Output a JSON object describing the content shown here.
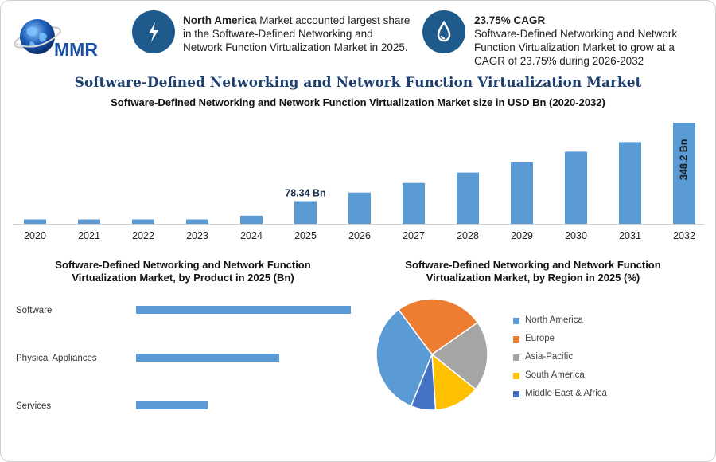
{
  "logo": {
    "text": "MMR"
  },
  "highlights": [
    {
      "icon": "lightning-icon",
      "bold": "North America",
      "text": " Market accounted largest share in the Software-Defined Networking and Network Function Virtualization Market in 2025."
    },
    {
      "icon": "growth-drop-icon",
      "bold": "23.75% CAGR",
      "text": "Software-Defined Networking and Network Function Virtualization Market to grow at a CAGR of 23.75% during 2026-2032"
    }
  ],
  "title": "Software-Defined Networking and Network Function Virtualization Market",
  "colors": {
    "bar": "#5b9bd5",
    "title": "#1f3f6e",
    "icon_bg": "#1f5a8c"
  },
  "chart_data": [
    {
      "type": "bar",
      "title": "Software-Defined Networking and Network Function Virtualization Market size in USD Bn (2020-2032)",
      "categories": [
        "2020",
        "2021",
        "2022",
        "2023",
        "2024",
        "2025",
        "2026",
        "2027",
        "2028",
        "2029",
        "2030",
        "2031",
        "2032"
      ],
      "values": [
        15,
        15,
        15,
        15,
        28,
        78.34,
        108,
        141,
        177,
        212,
        249,
        282,
        348.2
      ],
      "data_labels": [
        {
          "index": 5,
          "text": "78.34 Bn"
        },
        {
          "index": 12,
          "text": "348.2 Bn"
        }
      ],
      "ylim": [
        0,
        360
      ],
      "grid": false,
      "color": "#5b9bd5"
    },
    {
      "type": "bar",
      "orientation": "horizontal",
      "title_lines": [
        "Software-Defined Networking and Network Function",
        "Virtualization Market, by Product in 2025 (Bn)"
      ],
      "categories": [
        "Software",
        "Physical Appliances",
        "Services"
      ],
      "values": [
        45,
        30,
        15
      ],
      "xlim": [
        0,
        45
      ],
      "grid": false,
      "color": "#5b9bd5"
    },
    {
      "type": "pie",
      "title_lines": [
        "Software-Defined Networking and Network Function",
        "Virtualization Market, by Region in 2025 (%)"
      ],
      "labels": [
        "North America",
        "Europe",
        "Asia-Pacific",
        "South America",
        "Middle East & Africa"
      ],
      "values": [
        33,
        25,
        20,
        13,
        7
      ],
      "colors": [
        "#5b9bd5",
        "#ed7d31",
        "#a5a5a5",
        "#ffc000",
        "#4472c4"
      ],
      "legend": "right"
    }
  ]
}
